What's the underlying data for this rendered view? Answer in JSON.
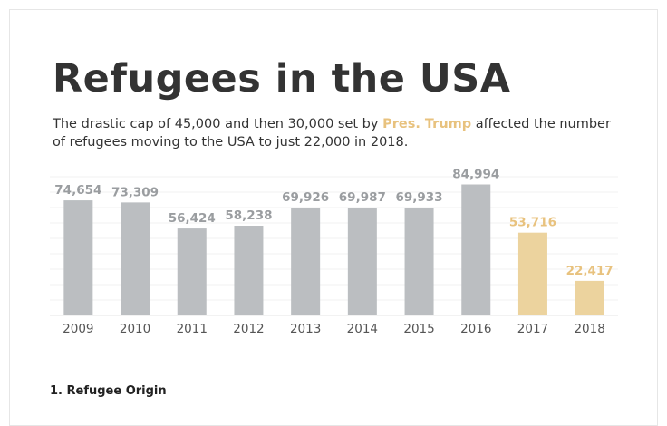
{
  "title": "Refugees in the USA",
  "description": {
    "before": "The drastic cap of 45,000 and then 30,000 set by ",
    "highlight": "Pres. Trump",
    "after": " affected the number of refugees moving to the USA to just 22,000 in 2018."
  },
  "section_heading": "1. Refugee Origin",
  "colors": {
    "default_bar": "#bbbec1",
    "highlight_bar": "#ecd39e",
    "default_label": "#9a9da0",
    "highlight_label": "#e8c27e"
  },
  "chart_data": {
    "type": "bar",
    "title": "",
    "xlabel": "",
    "ylabel": "",
    "ylim": [
      0,
      90000
    ],
    "grid": true,
    "categories": [
      "2009",
      "2010",
      "2011",
      "2012",
      "2013",
      "2014",
      "2015",
      "2016",
      "2017",
      "2018"
    ],
    "values": [
      74654,
      73309,
      56424,
      58238,
      69926,
      69987,
      69933,
      84994,
      53716,
      22417
    ],
    "value_labels": [
      "74,654",
      "73,309",
      "56,424",
      "58,238",
      "69,926",
      "69,987",
      "69,933",
      "84,994",
      "53,716",
      "22,417"
    ],
    "highlighted": [
      "2017",
      "2018"
    ]
  }
}
